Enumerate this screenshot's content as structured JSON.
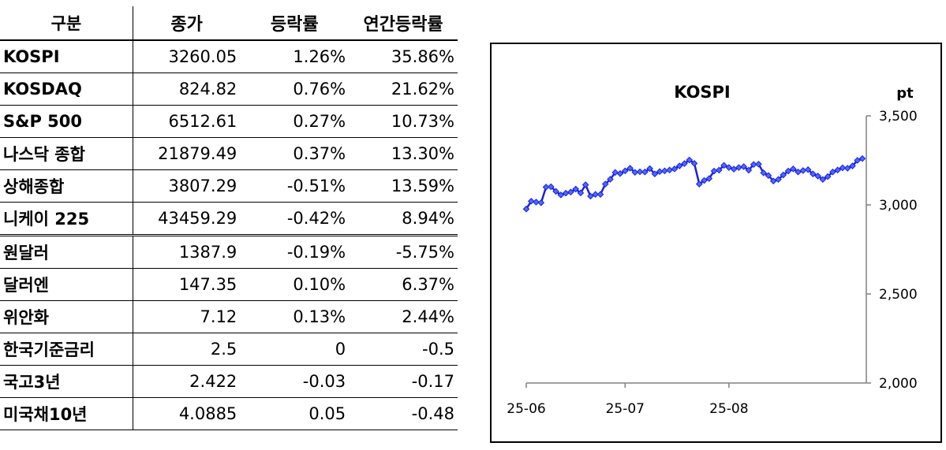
{
  "table": {
    "headers": [
      "구분",
      "종가",
      "등락률",
      "연간등락률"
    ],
    "rows": [
      {
        "name": "KOSPI",
        "close": "3260.05",
        "change": "1.26%",
        "ytd": "35.86%"
      },
      {
        "name": "KOSDAQ",
        "close": "824.82",
        "change": "0.76%",
        "ytd": "21.62%"
      },
      {
        "name": "S&P 500",
        "close": "6512.61",
        "change": "0.27%",
        "ytd": "10.73%"
      },
      {
        "name": "나스닥 종합",
        "close": "21879.49",
        "change": "0.37%",
        "ytd": "13.30%"
      },
      {
        "name": "상해종합",
        "close": "3807.29",
        "change": "-0.51%",
        "ytd": "13.59%"
      },
      {
        "name": "니케이 225",
        "close": "43459.29",
        "change": "-0.42%",
        "ytd": "8.94%"
      },
      {
        "name": "원달러",
        "close": "1387.9",
        "change": "-0.19%",
        "ytd": "-5.75%"
      },
      {
        "name": "달러엔",
        "close": "147.35",
        "change": "0.10%",
        "ytd": "6.37%"
      },
      {
        "name": "위안화",
        "close": "7.12",
        "change": "0.13%",
        "ytd": "2.44%"
      },
      {
        "name": "한국기준금리",
        "close": "2.5",
        "change": "0",
        "ytd": "-0.5"
      },
      {
        "name": "국고3년",
        "close": "2.422",
        "change": "-0.03",
        "ytd": "-0.17"
      },
      {
        "name": "미국채10년",
        "close": "4.0885",
        "change": "0.05",
        "ytd": "-0.48"
      }
    ]
  },
  "chart_data": {
    "type": "line",
    "title": "KOSPI",
    "ylabel": "pt",
    "ylim": [
      2000,
      3500
    ],
    "yticks": [
      "2,000",
      "2,500",
      "3,000",
      "3,500"
    ],
    "ytick_values": [
      2000,
      2500,
      3000,
      3500
    ],
    "xticks": [
      "25-06",
      "25-07",
      "25-08"
    ],
    "xtick_indices": [
      0,
      20,
      41
    ],
    "line_color": "#1f1fe0",
    "marker": "diamond",
    "series": [
      {
        "values": [
          2977,
          3021,
          3016,
          3012,
          3100,
          3102,
          3076,
          3056,
          3066,
          3072,
          3089,
          3067,
          3113,
          3049,
          3059,
          3059,
          3117,
          3144,
          3182,
          3176,
          3191,
          3206,
          3183,
          3186,
          3185,
          3204,
          3174,
          3187,
          3191,
          3196,
          3202,
          3219,
          3232,
          3252,
          3233,
          3117,
          3137,
          3148,
          3190,
          3195,
          3222,
          3210,
          3201,
          3210,
          3215,
          3195,
          3227,
          3229,
          3180,
          3165,
          3134,
          3143,
          3168,
          3190,
          3202,
          3185,
          3193,
          3198,
          3174,
          3162,
          3143,
          3159,
          3185,
          3196,
          3208,
          3206,
          3219,
          3250,
          3260
        ]
      }
    ]
  }
}
